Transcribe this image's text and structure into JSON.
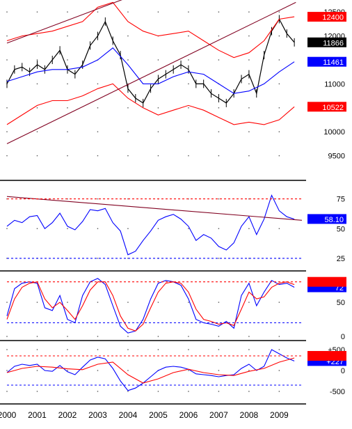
{
  "colors": {
    "price": "#000000",
    "band": "#ff0000",
    "average": "#0000ff",
    "channel": "#800020",
    "rsi": "#0000ff",
    "stoch_k": "#0000ff",
    "stoch_d": "#ff0000",
    "macd": "#0000ff",
    "signal": "#ff0000",
    "blue_ref": "#0000ff",
    "red_ref": "#ff0000",
    "tag_red": "#ff0000",
    "tag_blue": "#0000ff",
    "tag_black": "#000000"
  },
  "x_axis": {
    "min": 2000.0,
    "max": 2009.75,
    "ticks": [
      "2000",
      "2001",
      "2002",
      "2003",
      "2004",
      "2005",
      "2006",
      "2007",
      "2008",
      "2009"
    ]
  },
  "chart_data": [
    {
      "name": "price",
      "type": "line",
      "ylim": [
        9000,
        12750
      ],
      "yticks": [
        "12500",
        "12000",
        "11500",
        "11000",
        "10500",
        "10000",
        "9500"
      ],
      "tags": [
        {
          "text": "12400",
          "y": 12400,
          "style": "red"
        },
        {
          "text": "11866",
          "y": 11866,
          "style": "black"
        },
        {
          "text": "11461",
          "y": 11461,
          "style": "blue"
        },
        {
          "text": "10522",
          "y": 10522,
          "style": "red"
        }
      ],
      "series": [
        {
          "kind": "price",
          "x": [
            2000.0,
            2000.25,
            2000.5,
            2000.75,
            2001.0,
            2001.25,
            2001.5,
            2001.75,
            2002.0,
            2002.25,
            2002.5,
            2002.75,
            2003.0,
            2003.25,
            2003.5,
            2003.75,
            2004.0,
            2004.25,
            2004.5,
            2004.75,
            2005.0,
            2005.25,
            2005.5,
            2005.75,
            2006.0,
            2006.25,
            2006.5,
            2006.75,
            2007.0,
            2007.25,
            2007.5,
            2007.75,
            2008.0,
            2008.25,
            2008.5,
            2008.75,
            2009.0,
            2009.25,
            2009.5
          ],
          "y": [
            11000,
            11300,
            11350,
            11250,
            11400,
            11300,
            11500,
            11700,
            11300,
            11200,
            11400,
            11800,
            12000,
            12300,
            11900,
            11600,
            10900,
            10700,
            10600,
            10900,
            11100,
            11200,
            11300,
            11400,
            11300,
            11000,
            11000,
            10800,
            10700,
            10600,
            10800,
            11100,
            11200,
            10800,
            11600,
            12100,
            12350,
            12050,
            11866
          ]
        },
        {
          "kind": "average",
          "x": [
            2000.0,
            2000.5,
            2001.0,
            2001.5,
            2002.0,
            2002.5,
            2003.0,
            2003.5,
            2004.0,
            2004.5,
            2005.0,
            2005.5,
            2006.0,
            2006.5,
            2007.0,
            2007.5,
            2008.0,
            2008.5,
            2009.0,
            2009.5
          ],
          "y": [
            11050,
            11150,
            11250,
            11300,
            11300,
            11350,
            11500,
            11750,
            11400,
            11000,
            11000,
            11150,
            11250,
            11200,
            11000,
            10800,
            10850,
            11000,
            11250,
            11461
          ]
        },
        {
          "kind": "band",
          "x": [
            2000.0,
            2000.5,
            2001.0,
            2001.5,
            2002.0,
            2002.5,
            2003.0,
            2003.5,
            2004.0,
            2004.5,
            2005.0,
            2005.5,
            2006.0,
            2006.5,
            2007.0,
            2007.5,
            2008.0,
            2008.5,
            2009.0,
            2009.5
          ],
          "y": [
            11900,
            12000,
            12050,
            12100,
            12200,
            12300,
            12600,
            12700,
            12300,
            12100,
            12000,
            12050,
            12100,
            11900,
            11700,
            11550,
            11650,
            11900,
            12350,
            12400
          ]
        },
        {
          "kind": "band",
          "x": [
            2000.0,
            2000.5,
            2001.0,
            2001.5,
            2002.0,
            2002.5,
            2003.0,
            2003.5,
            2004.0,
            2004.5,
            2005.0,
            2005.5,
            2006.0,
            2006.5,
            2007.0,
            2007.5,
            2008.0,
            2008.5,
            2009.0,
            2009.5
          ],
          "y": [
            10150,
            10350,
            10550,
            10650,
            10650,
            10750,
            10900,
            11000,
            10700,
            10500,
            10350,
            10450,
            10550,
            10450,
            10300,
            10150,
            10200,
            10150,
            10250,
            10522
          ]
        },
        {
          "kind": "channel",
          "x": [
            2000.0,
            2004.2
          ],
          "y": [
            11850,
            12850
          ]
        },
        {
          "kind": "channel",
          "x": [
            2000.0,
            2009.55
          ],
          "y": [
            9750,
            12700
          ]
        }
      ]
    },
    {
      "name": "rsi",
      "type": "line",
      "ylim": [
        15,
        90
      ],
      "yticks": [
        "75",
        "50",
        "25"
      ],
      "tags": [
        {
          "text": "58.10",
          "y": 58.1,
          "style": "blue"
        }
      ],
      "series": [
        {
          "kind": "rsi",
          "x": [
            2000.0,
            2000.25,
            2000.5,
            2000.75,
            2001.0,
            2001.25,
            2001.5,
            2001.75,
            2002.0,
            2002.25,
            2002.5,
            2002.75,
            2003.0,
            2003.25,
            2003.5,
            2003.75,
            2004.0,
            2004.25,
            2004.5,
            2004.75,
            2005.0,
            2005.25,
            2005.5,
            2005.75,
            2006.0,
            2006.25,
            2006.5,
            2006.75,
            2007.0,
            2007.25,
            2007.5,
            2007.75,
            2008.0,
            2008.25,
            2008.5,
            2008.75,
            2009.0,
            2009.25,
            2009.5
          ],
          "y": [
            52,
            57,
            55,
            60,
            61,
            50,
            55,
            63,
            52,
            49,
            56,
            66,
            65,
            67,
            55,
            48,
            28,
            31,
            40,
            48,
            57,
            60,
            62,
            58,
            52,
            40,
            45,
            42,
            35,
            32,
            38,
            52,
            60,
            45,
            58,
            78,
            65,
            60,
            58
          ]
        },
        {
          "kind": "channel",
          "x": [
            2000.0,
            2009.75
          ],
          "y": [
            77,
            57
          ]
        },
        {
          "kind": "red_ref",
          "x": [
            2000.0,
            2009.75
          ],
          "y": [
            75,
            75
          ]
        },
        {
          "kind": "blue_ref",
          "x": [
            2000.0,
            2009.75
          ],
          "y": [
            25,
            25
          ]
        }
      ]
    },
    {
      "name": "stochastic",
      "type": "line",
      "ylim": [
        -5,
        95
      ],
      "yticks": [
        "50",
        "0"
      ],
      "tags": [
        {
          "text": "72",
          "y": 72,
          "style": "blue"
        },
        {
          "text": "",
          "y": 80,
          "style": "red"
        }
      ],
      "series": [
        {
          "kind": "stoch_k",
          "x": [
            2000.0,
            2000.25,
            2000.5,
            2000.75,
            2001.0,
            2001.25,
            2001.5,
            2001.75,
            2002.0,
            2002.25,
            2002.5,
            2002.75,
            2003.0,
            2003.25,
            2003.5,
            2003.75,
            2004.0,
            2004.25,
            2004.5,
            2004.75,
            2005.0,
            2005.25,
            2005.5,
            2005.75,
            2006.0,
            2006.25,
            2006.5,
            2006.75,
            2007.0,
            2007.25,
            2007.5,
            2007.75,
            2008.0,
            2008.25,
            2008.5,
            2008.75,
            2009.0,
            2009.25,
            2009.5
          ],
          "y": [
            30,
            70,
            78,
            80,
            78,
            42,
            38,
            60,
            25,
            20,
            60,
            80,
            85,
            76,
            45,
            15,
            5,
            8,
            25,
            55,
            78,
            82,
            80,
            75,
            55,
            25,
            20,
            18,
            15,
            22,
            12,
            60,
            78,
            45,
            65,
            82,
            76,
            78,
            72
          ]
        },
        {
          "kind": "stoch_d",
          "x": [
            2000.0,
            2000.25,
            2000.5,
            2000.75,
            2001.0,
            2001.25,
            2001.5,
            2001.75,
            2002.0,
            2002.25,
            2002.5,
            2002.75,
            2003.0,
            2003.25,
            2003.5,
            2003.75,
            2004.0,
            2004.25,
            2004.5,
            2004.75,
            2005.0,
            2005.25,
            2005.5,
            2005.75,
            2006.0,
            2006.25,
            2006.5,
            2006.75,
            2007.0,
            2007.25,
            2007.5,
            2007.75,
            2008.0,
            2008.25,
            2008.5,
            2008.75,
            2009.0,
            2009.25,
            2009.5
          ],
          "y": [
            25,
            55,
            72,
            78,
            80,
            55,
            42,
            50,
            38,
            25,
            45,
            68,
            80,
            80,
            60,
            30,
            12,
            8,
            18,
            42,
            65,
            78,
            80,
            78,
            65,
            40,
            25,
            22,
            18,
            20,
            16,
            40,
            65,
            55,
            58,
            72,
            78,
            80,
            76
          ]
        },
        {
          "kind": "red_ref",
          "x": [
            2000.0,
            2009.75
          ],
          "y": [
            80,
            80
          ]
        },
        {
          "kind": "blue_ref",
          "x": [
            2000.0,
            2009.75
          ],
          "y": [
            20,
            20
          ]
        }
      ]
    },
    {
      "name": "macd",
      "type": "line",
      "ylim": [
        -800,
        700
      ],
      "yticks": [
        "+500",
        "0",
        "-500"
      ],
      "tags": [
        {
          "text": "+227",
          "y": 227,
          "style": "blue"
        },
        {
          "text": "",
          "y": 350,
          "style": "red"
        }
      ],
      "series": [
        {
          "kind": "macd",
          "x": [
            2000.0,
            2000.25,
            2000.5,
            2000.75,
            2001.0,
            2001.25,
            2001.5,
            2001.75,
            2002.0,
            2002.25,
            2002.5,
            2002.75,
            2003.0,
            2003.25,
            2003.5,
            2003.75,
            2004.0,
            2004.25,
            2004.5,
            2004.75,
            2005.0,
            2005.25,
            2005.5,
            2005.75,
            2006.0,
            2006.25,
            2006.5,
            2006.75,
            2007.0,
            2007.25,
            2007.5,
            2007.75,
            2008.0,
            2008.25,
            2008.5,
            2008.75,
            2009.0,
            2009.25,
            2009.5
          ],
          "y": [
            -50,
            100,
            150,
            120,
            150,
            0,
            -20,
            120,
            -30,
            -100,
            80,
            250,
            320,
            280,
            50,
            -250,
            -480,
            -420,
            -300,
            -150,
            0,
            80,
            100,
            80,
            30,
            -80,
            -100,
            -120,
            -150,
            -120,
            -100,
            50,
            150,
            0,
            100,
            500,
            400,
            300,
            227
          ]
        },
        {
          "kind": "signal",
          "x": [
            2000.0,
            2000.5,
            2001.0,
            2001.5,
            2002.0,
            2002.5,
            2003.0,
            2003.5,
            2004.0,
            2004.5,
            2005.0,
            2005.5,
            2006.0,
            2006.5,
            2007.0,
            2007.5,
            2008.0,
            2008.5,
            2009.0,
            2009.5
          ],
          "y": [
            -50,
            50,
            100,
            80,
            40,
            20,
            150,
            200,
            -100,
            -300,
            -200,
            -50,
            30,
            -50,
            -100,
            -120,
            -20,
            50,
            200,
            300
          ]
        },
        {
          "kind": "red_ref",
          "x": [
            2000.0,
            2009.75
          ],
          "y": [
            350,
            350
          ]
        },
        {
          "kind": "blue_ref",
          "x": [
            2000.0,
            2009.75
          ],
          "y": [
            -350,
            -350
          ]
        }
      ]
    }
  ]
}
